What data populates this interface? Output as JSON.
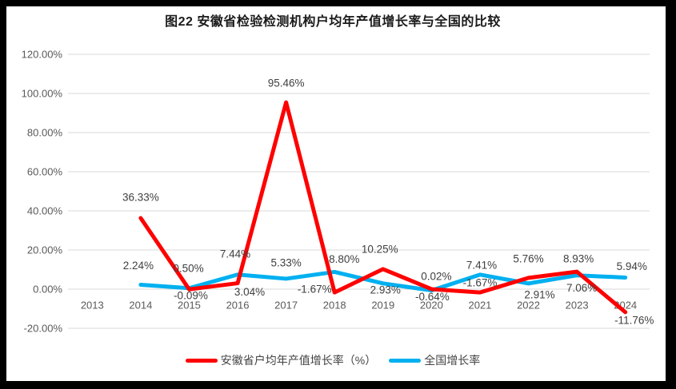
{
  "window": {
    "frame_color": "#000000",
    "panel_color": "#FFFFFF"
  },
  "chart_data": {
    "type": "line",
    "title": "图22 安徽省检验检测机构户均年产值增长率与全国的比较",
    "categories": [
      "2013",
      "2014",
      "2015",
      "2016",
      "2017",
      "2018",
      "2019",
      "2020",
      "2021",
      "2022",
      "2023",
      "2024"
    ],
    "series": [
      {
        "name": "安徽省户均年产值增长率（%）",
        "color": "#FF0000",
        "values": [
          null,
          36.33,
          -0.09,
          3.04,
          95.46,
          -1.67,
          10.25,
          0.02,
          -1.67,
          5.76,
          8.93,
          -11.76
        ],
        "point_labels": [
          "",
          "36.33%",
          "-0.09%",
          "3.04%",
          "95.46%",
          "-1.67%",
          "10.25%",
          "0.02%",
          "-1.67%",
          "5.76%",
          "8.93%",
          "-11.76%"
        ],
        "label_offsets": [
          [
            0,
            0
          ],
          [
            0,
            -26
          ],
          [
            2,
            8
          ],
          [
            15,
            11
          ],
          [
            0,
            -24
          ],
          [
            -25,
            -4
          ],
          [
            -4,
            -25
          ],
          [
            6,
            -16
          ],
          [
            0,
            -12
          ],
          [
            0,
            -24
          ],
          [
            2,
            -16
          ],
          [
            11,
            10
          ]
        ]
      },
      {
        "name": "全国增长率",
        "color": "#00B0F0",
        "values": [
          null,
          2.24,
          0.5,
          7.44,
          5.33,
          8.8,
          2.93,
          -0.64,
          7.41,
          2.91,
          7.06,
          5.94
        ],
        "point_labels": [
          "",
          "2.24%",
          "0.50%",
          "7.44%",
          "5.33%",
          "8.80%",
          "2.93%",
          "-0.64%",
          "7.41%",
          "2.91%",
          "7.06%",
          "5.94%"
        ],
        "label_offsets": [
          [
            0,
            0
          ],
          [
            -3,
            -24
          ],
          [
            -1,
            -25
          ],
          [
            -3,
            -26
          ],
          [
            0,
            -20
          ],
          [
            12,
            -16
          ],
          [
            3,
            8
          ],
          [
            1,
            8
          ],
          [
            2,
            -12
          ],
          [
            14,
            14
          ],
          [
            6,
            16
          ],
          [
            8,
            -14
          ]
        ]
      }
    ],
    "y_axis": {
      "min": -20,
      "max": 120,
      "step": 20,
      "ticks": [
        {
          "value": 120,
          "label": "120.00%"
        },
        {
          "value": 100,
          "label": "100.00%"
        },
        {
          "value": 80,
          "label": "80.00%"
        },
        {
          "value": 60,
          "label": "60.00%"
        },
        {
          "value": 40,
          "label": "40.00%"
        },
        {
          "value": 20,
          "label": "20.00%"
        },
        {
          "value": 0,
          "label": "0.00%"
        },
        {
          "value": -20,
          "label": "-20.00%"
        }
      ]
    },
    "xlabel": "",
    "ylabel": "",
    "grid": true,
    "legend_position": "bottom",
    "colors": {
      "grid": "#D9D9D9",
      "axis_text": "#595959",
      "data_label": "#3F3F3F",
      "title_text": "#1A1A1A"
    }
  }
}
